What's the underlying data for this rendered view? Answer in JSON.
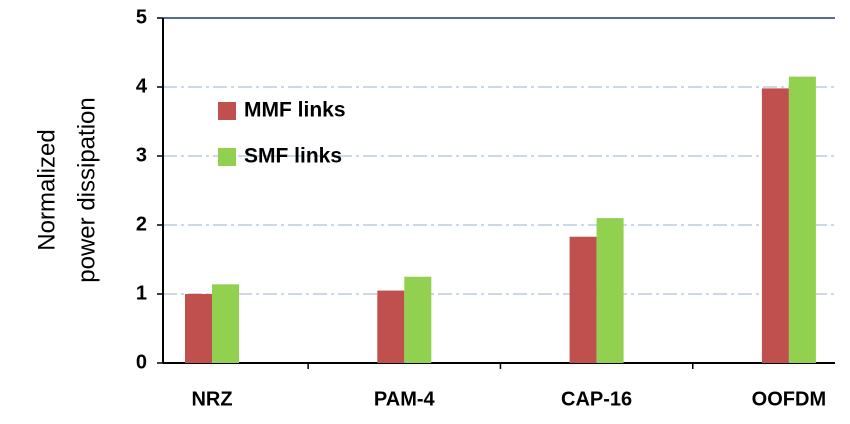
{
  "chart_data": {
    "type": "bar",
    "y_label": [
      "Normalized",
      "power  dissipation"
    ],
    "categories": [
      "NRZ",
      "PAM-4",
      "CAP-16",
      "OOFDM"
    ],
    "series": [
      {
        "name": "MMF links",
        "color": "#c0504d",
        "values": [
          1.0,
          1.05,
          1.83,
          3.98
        ]
      },
      {
        "name": "SMF links",
        "color": "#92d050",
        "values": [
          1.14,
          1.25,
          2.1,
          4.15
        ]
      }
    ],
    "ylim": [
      0,
      5
    ],
    "yticks": [
      0,
      1,
      2,
      3,
      4,
      5
    ],
    "grid": true,
    "legend": "upper left"
  }
}
